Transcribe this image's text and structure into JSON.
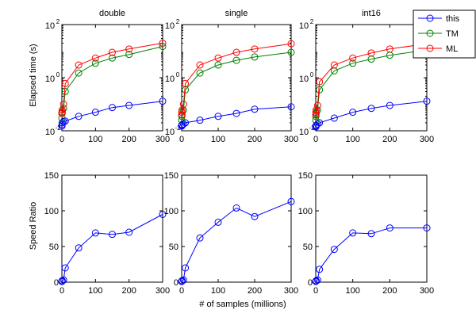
{
  "legend": {
    "placement": "top-right",
    "entries": [
      {
        "label": "this",
        "color": "#0000ff"
      },
      {
        "label": "TM",
        "color": "#008000"
      },
      {
        "label": "ML",
        "color": "#ff0000"
      }
    ]
  },
  "labels": {
    "ylabel_top": "Elapsed time (s)",
    "ylabel_bottom": "Speed Ratio",
    "xlabel": "# of samples (millions)"
  },
  "chart_data": [
    {
      "type": "line",
      "title": "double",
      "xlabel": "",
      "ylabel": "Elapsed time (s)",
      "yscale": "log",
      "xlim": [
        0,
        300
      ],
      "ylim": [
        0.01,
        100
      ],
      "x_ticks": [
        "0",
        "100",
        "200",
        "300"
      ],
      "x": [
        0.1,
        0.5,
        1,
        5,
        10,
        50,
        100,
        150,
        200,
        300
      ],
      "series": [
        {
          "name": "this",
          "values": [
            0.015,
            0.017,
            0.02,
            0.022,
            0.023,
            0.035,
            0.05,
            0.075,
            0.09,
            0.13
          ]
        },
        {
          "name": "TM",
          "values": [
            0.03,
            0.045,
            0.05,
            0.07,
            0.3,
            1.5,
            3.5,
            5.5,
            7.5,
            15
          ]
        },
        {
          "name": "ML",
          "values": [
            0.045,
            0.05,
            0.06,
            0.1,
            0.6,
            3,
            5.5,
            9,
            12,
            20
          ]
        }
      ]
    },
    {
      "type": "line",
      "title": "single",
      "xlabel": "",
      "ylabel": "",
      "yscale": "log",
      "xlim": [
        0,
        300
      ],
      "ylim": [
        0.01,
        100
      ],
      "x_ticks": [
        "0",
        "100",
        "200",
        "300"
      ],
      "x": [
        0.1,
        0.5,
        1,
        5,
        10,
        50,
        100,
        150,
        200,
        300
      ],
      "series": [
        {
          "name": "this",
          "values": [
            0.015,
            0.016,
            0.017,
            0.018,
            0.02,
            0.025,
            0.035,
            0.045,
            0.065,
            0.08
          ]
        },
        {
          "name": "TM",
          "values": [
            0.025,
            0.035,
            0.04,
            0.06,
            0.35,
            1.5,
            3,
            4.5,
            6,
            9
          ]
        },
        {
          "name": "ML",
          "values": [
            0.04,
            0.05,
            0.06,
            0.1,
            0.6,
            3,
            5.5,
            9,
            12,
            19
          ]
        }
      ]
    },
    {
      "type": "line",
      "title": "int16",
      "xlabel": "",
      "ylabel": "",
      "yscale": "log",
      "xlim": [
        0,
        300
      ],
      "ylim": [
        0.01,
        100
      ],
      "x_ticks": [
        "0",
        "100",
        "200",
        "300"
      ],
      "x": [
        0.1,
        0.5,
        1,
        5,
        10,
        50,
        100,
        150,
        200,
        300
      ],
      "series": [
        {
          "name": "this",
          "values": [
            0.014,
            0.015,
            0.016,
            0.018,
            0.02,
            0.03,
            0.05,
            0.07,
            0.09,
            0.13
          ]
        },
        {
          "name": "TM",
          "values": [
            0.025,
            0.035,
            0.045,
            0.06,
            0.35,
            1.8,
            3.5,
            5,
            7,
            11
          ]
        },
        {
          "name": "ML",
          "values": [
            0.04,
            0.05,
            0.06,
            0.09,
            0.7,
            3,
            5.5,
            8.5,
            12,
            19
          ]
        }
      ]
    },
    {
      "type": "line",
      "title": "",
      "xlabel": "",
      "ylabel": "Speed Ratio",
      "xlim": [
        0,
        300
      ],
      "ylim": [
        0,
        150
      ],
      "x_ticks": [
        "0",
        "100",
        "200",
        "300"
      ],
      "y_ticks": [
        "0",
        "50",
        "100",
        "150"
      ],
      "x": [
        0.1,
        0.5,
        1,
        5,
        10,
        50,
        100,
        150,
        200,
        300
      ],
      "series": [
        {
          "name": "",
          "values": [
            1,
            1.5,
            2,
            3,
            20,
            48,
            69,
            67,
            70,
            95
          ]
        }
      ]
    },
    {
      "type": "line",
      "title": "",
      "xlabel": "# of samples (millions)",
      "ylabel": "",
      "xlim": [
        0,
        300
      ],
      "ylim": [
        0,
        150
      ],
      "x_ticks": [
        "0",
        "100",
        "200",
        "300"
      ],
      "y_ticks": [
        "0",
        "50",
        "100",
        "150"
      ],
      "x": [
        0.1,
        0.5,
        1,
        5,
        10,
        50,
        100,
        150,
        200,
        300
      ],
      "series": [
        {
          "name": "",
          "values": [
            1,
            1.5,
            2,
            3,
            20,
            62,
            84,
            104,
            92,
            113
          ]
        }
      ]
    },
    {
      "type": "line",
      "title": "",
      "xlabel": "",
      "ylabel": "",
      "xlim": [
        0,
        300
      ],
      "ylim": [
        0,
        150
      ],
      "x_ticks": [
        "0",
        "100",
        "200",
        "300"
      ],
      "y_ticks": [
        "0",
        "50",
        "100",
        "150"
      ],
      "x": [
        0.1,
        0.5,
        1,
        5,
        10,
        50,
        100,
        150,
        200,
        300
      ],
      "series": [
        {
          "name": "",
          "values": [
            1,
            1.5,
            2,
            3,
            18,
            46,
            69,
            68,
            76,
            76
          ]
        }
      ]
    }
  ]
}
